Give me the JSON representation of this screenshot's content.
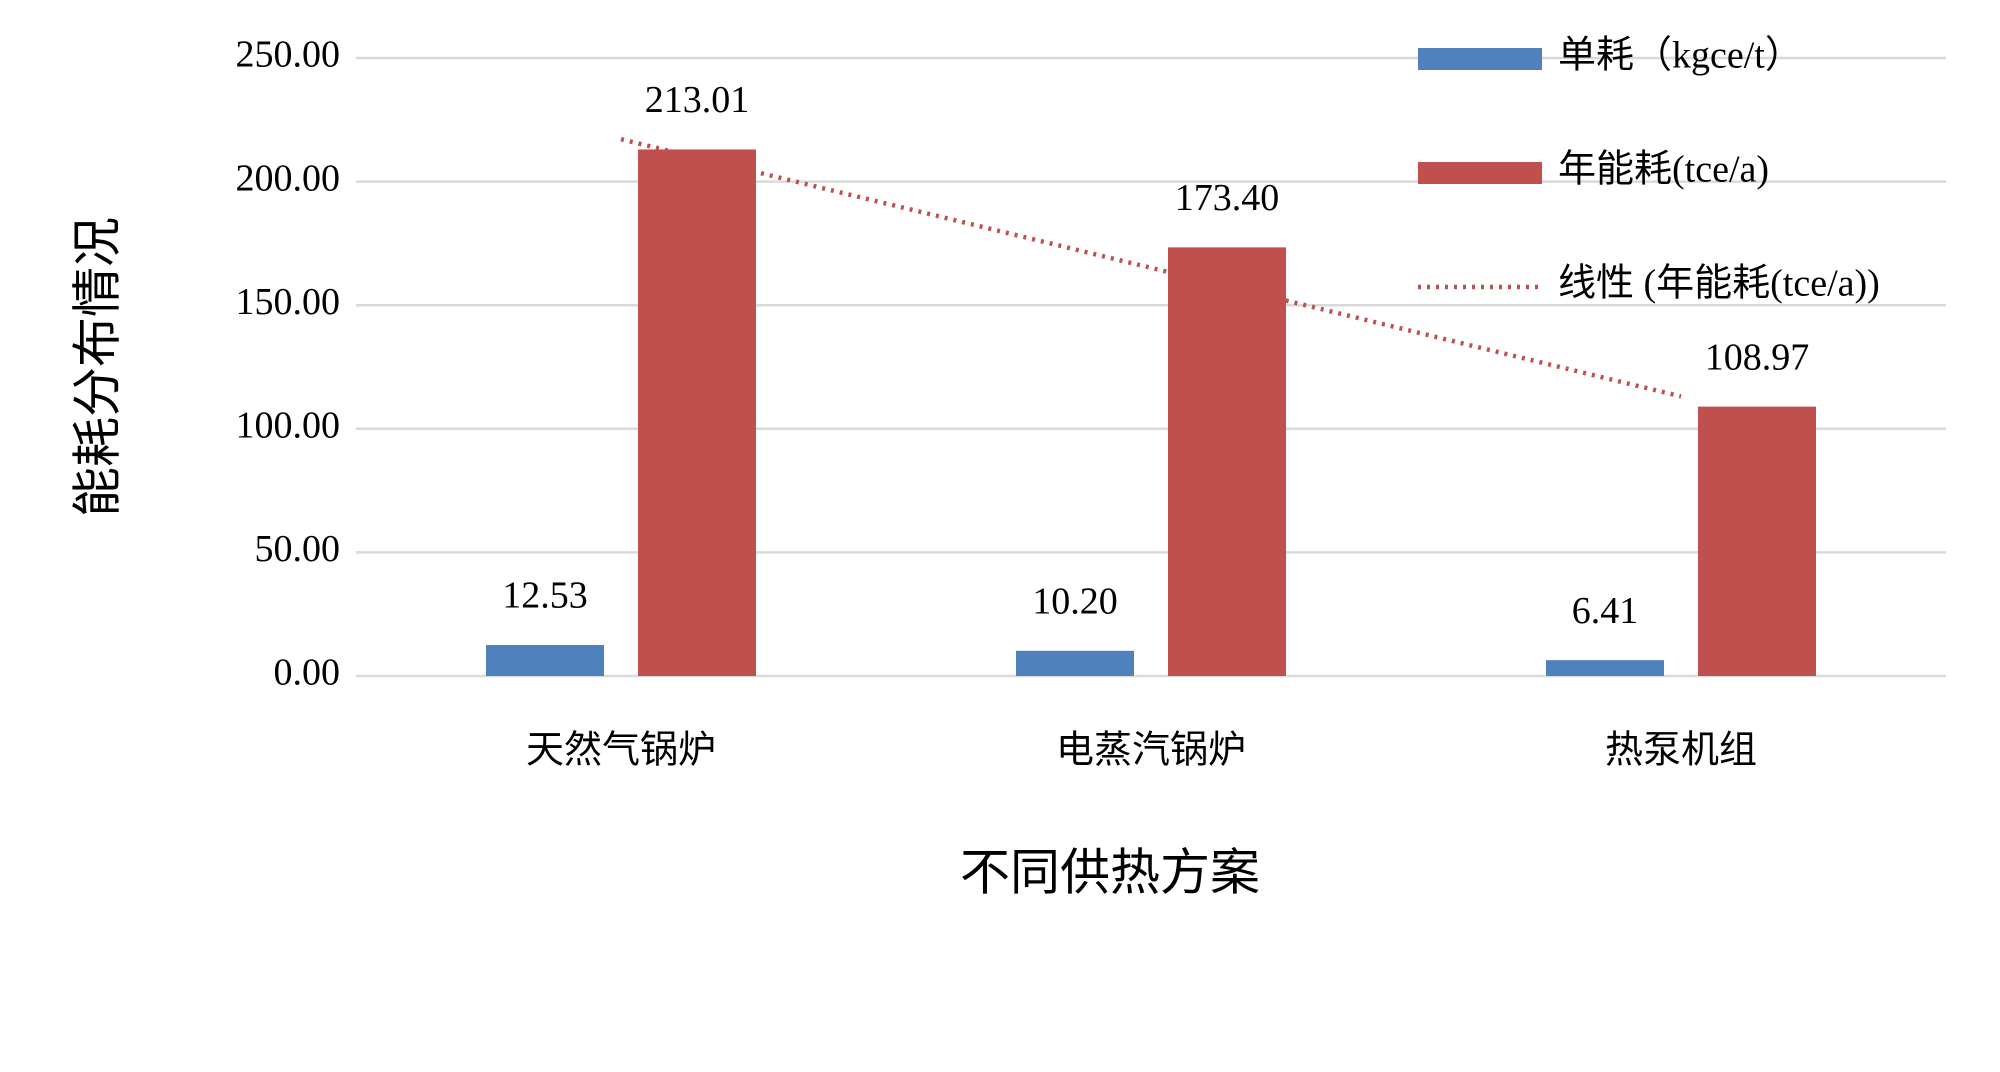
{
  "chart_data": {
    "type": "bar",
    "x_label": "不同供热方案",
    "y_label": "能耗分布情况",
    "categories": [
      "天然气锅炉",
      "电蒸汽锅炉",
      "热泵机组"
    ],
    "series": [
      {
        "name": "单耗（kgce/t）",
        "color": "#4f81bd",
        "values": [
          12.53,
          10.2,
          6.41
        ],
        "value_labels": [
          "12.53",
          "10.20",
          "6.41"
        ]
      },
      {
        "name": "年能耗(tce/a)",
        "color": "#c0504d",
        "values": [
          213.01,
          173.4,
          108.97
        ],
        "value_labels": [
          "213.01",
          "173.40",
          "108.97"
        ]
      }
    ],
    "trendline": {
      "name": "线性 (年能耗(tce/a))",
      "color": "#c0504d",
      "kind": "linear",
      "of_series": 1
    },
    "ylim": [
      0,
      250
    ],
    "yticks": [
      {
        "value": 0,
        "label": "0.00"
      },
      {
        "value": 50,
        "label": "50.00"
      },
      {
        "value": 100,
        "label": "100.00"
      },
      {
        "value": 150,
        "label": "150.00"
      },
      {
        "value": 200,
        "label": "200.00"
      },
      {
        "value": 250,
        "label": "250.00"
      }
    ],
    "grid": true,
    "legend": "top-right"
  }
}
